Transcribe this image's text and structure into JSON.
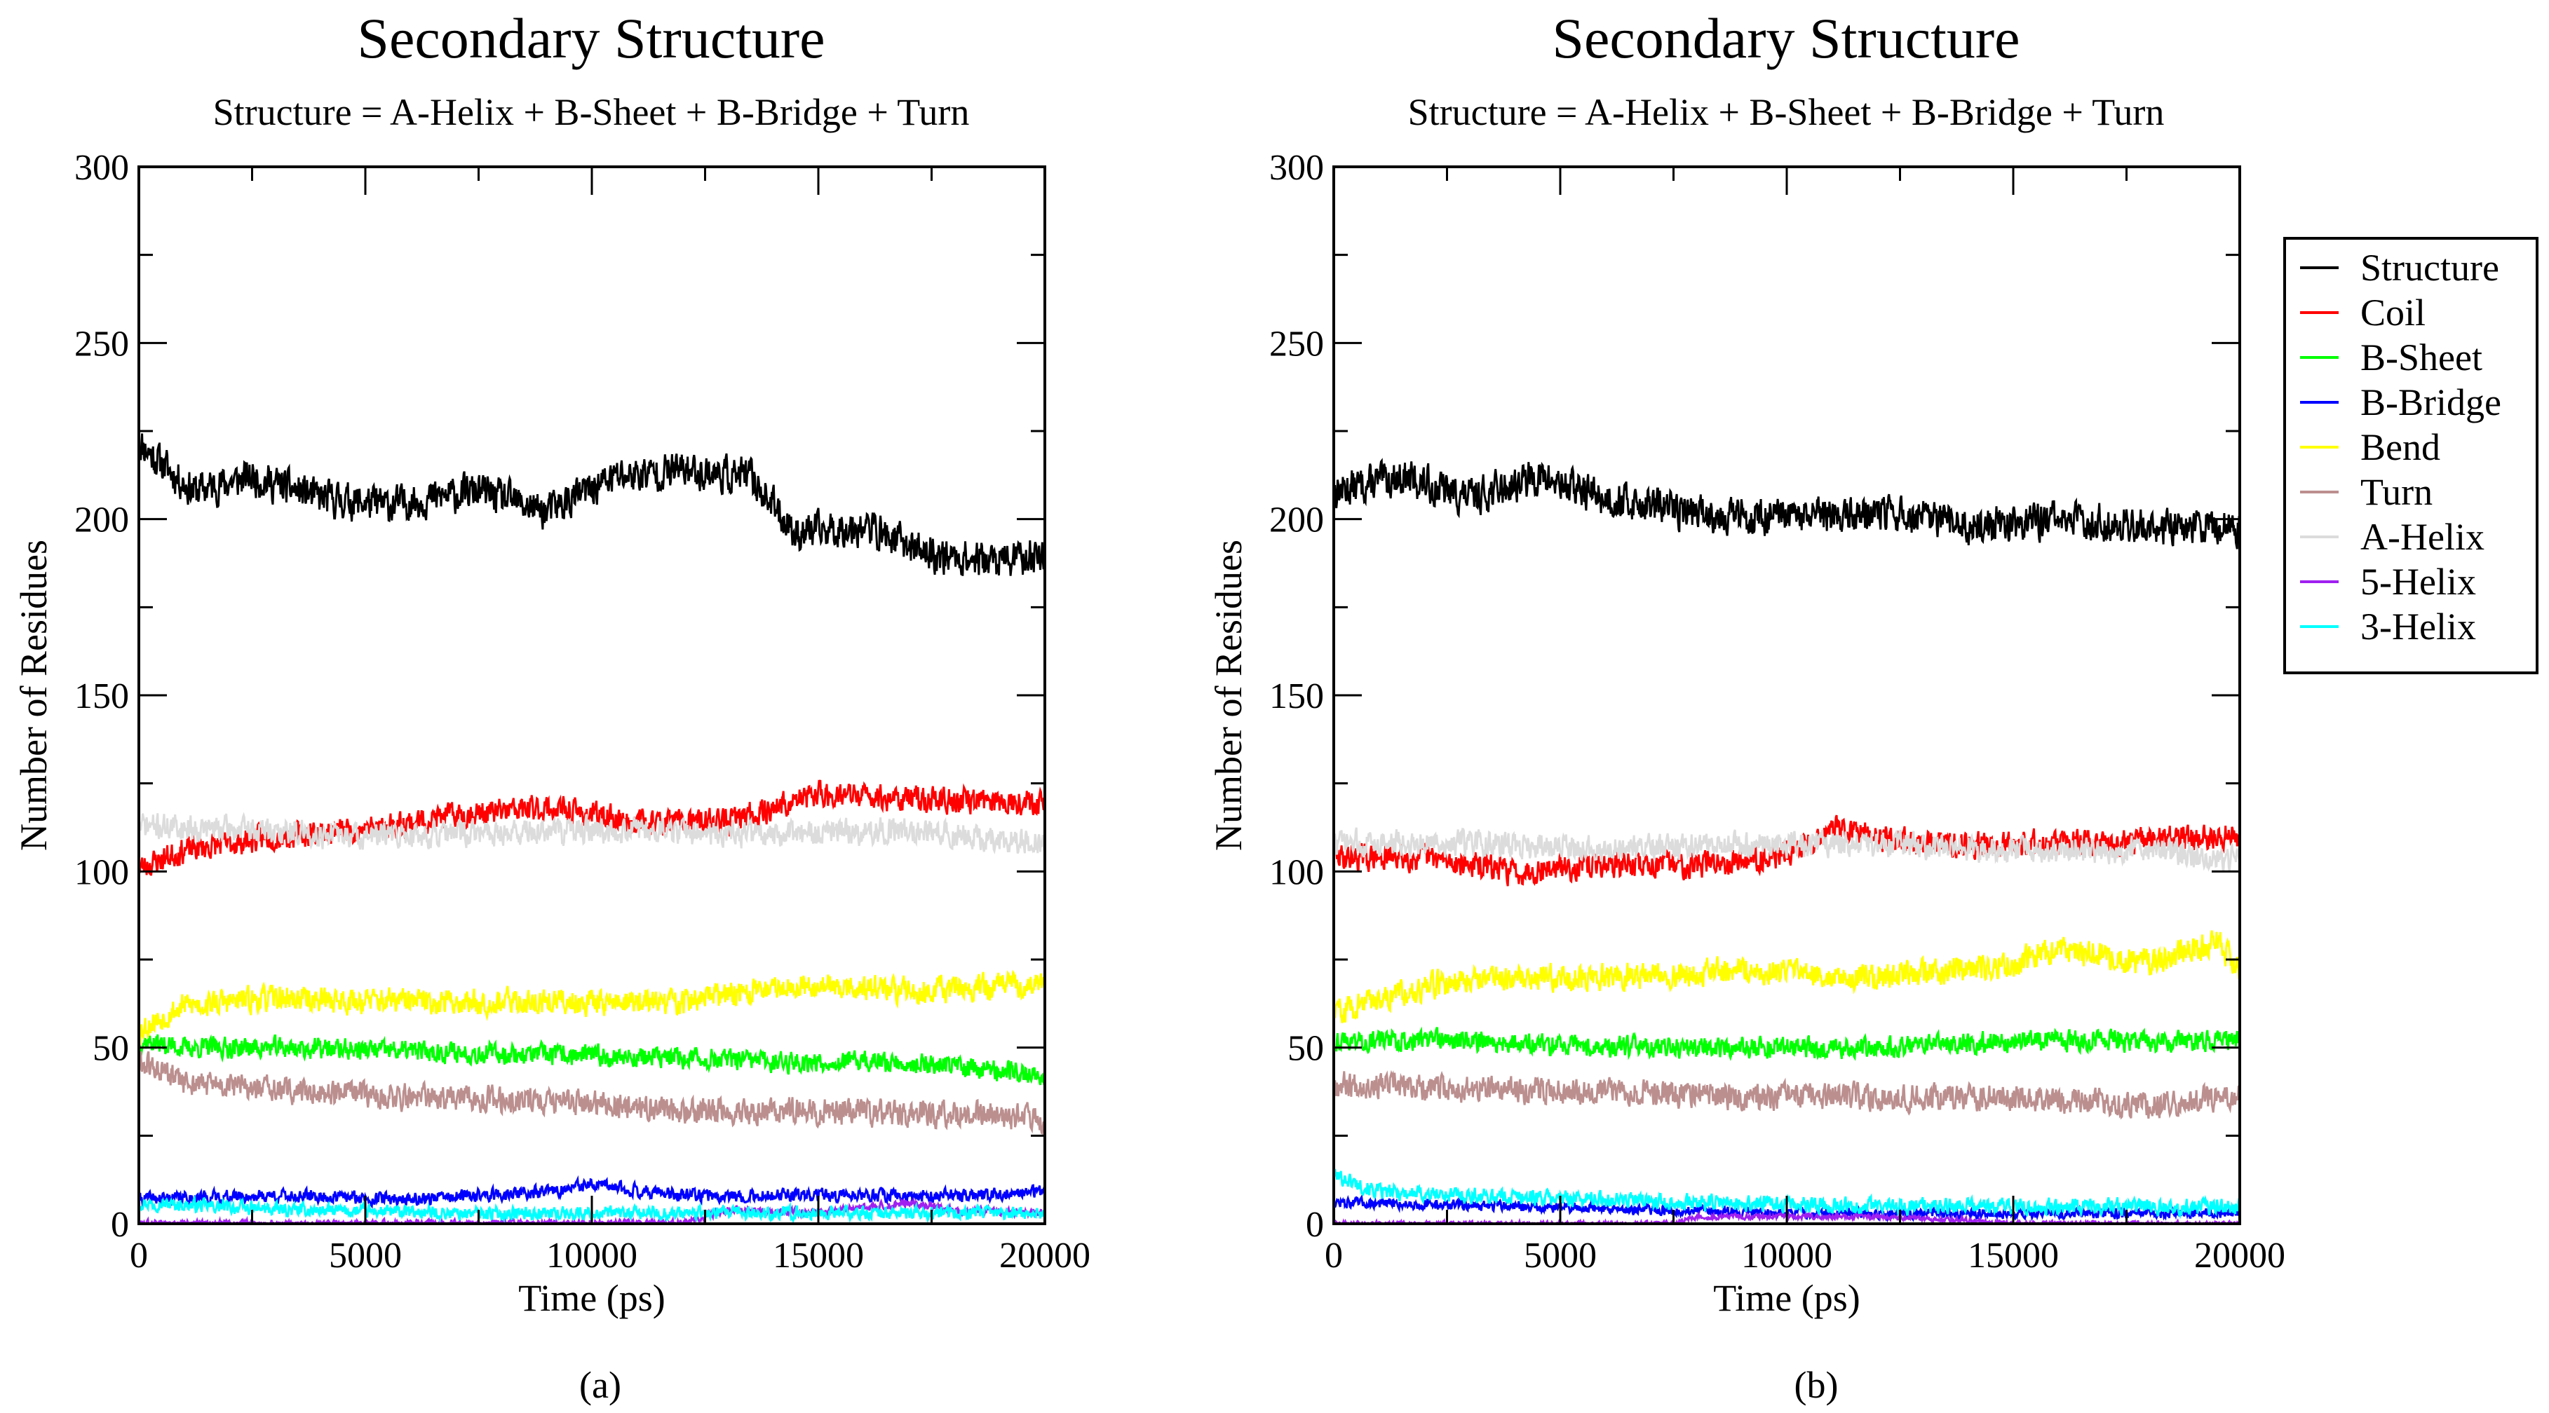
{
  "chart_data": [
    {
      "type": "line",
      "panel_label": "(a)",
      "title": "Secondary Structure",
      "subtitle": "Structure = A-Helix + B-Sheet + B-Bridge + Turn",
      "xlabel": "Time (ps)",
      "ylabel": "Number of Residues",
      "xlim": [
        0,
        20000
      ],
      "ylim": [
        0,
        300
      ],
      "x_ticks": [
        0,
        5000,
        10000,
        15000,
        20000
      ],
      "y_ticks": [
        0,
        50,
        100,
        150,
        200,
        250,
        300
      ],
      "series": [
        {
          "name": "Structure",
          "color": "#000000",
          "noise": 7,
          "seed": 11,
          "x": [
            0,
            300,
            1200,
            2500,
            4000,
            5500,
            7500,
            9000,
            10500,
            12000,
            13500,
            14500,
            16000,
            17500,
            19000,
            20000
          ],
          "y": [
            222,
            218,
            208,
            212,
            206,
            204,
            208,
            202,
            212,
            214,
            212,
            196,
            198,
            190,
            188,
            190
          ]
        },
        {
          "name": "Coil",
          "color": "#ff0000",
          "noise": 5,
          "seed": 23,
          "x": [
            0,
            1000,
            3000,
            5000,
            7000,
            9000,
            11000,
            13000,
            14000,
            15000,
            16500,
            18000,
            20000
          ],
          "y": [
            101,
            106,
            110,
            112,
            116,
            118,
            114,
            114,
            118,
            122,
            121,
            120,
            120
          ]
        },
        {
          "name": "B-Sheet",
          "color": "#00ff00",
          "noise": 4,
          "seed": 37,
          "x": [
            0,
            1000,
            3000,
            6000,
            9000,
            12000,
            14000,
            16000,
            18000,
            20000
          ],
          "y": [
            52,
            50,
            50,
            49,
            48,
            47,
            46,
            46,
            45,
            42
          ]
        },
        {
          "name": "B-Bridge",
          "color": "#0000ff",
          "noise": 2.5,
          "seed": 41,
          "x": [
            0,
            3000,
            6000,
            9000,
            10000,
            12000,
            15000,
            18000,
            20000
          ],
          "y": [
            7,
            8,
            7,
            9,
            11,
            8,
            8,
            8,
            9
          ]
        },
        {
          "name": "Bend",
          "color": "#ffff00",
          "noise": 5,
          "seed": 53,
          "x": [
            0,
            1000,
            3000,
            6000,
            9000,
            12000,
            14500,
            17000,
            20000
          ],
          "y": [
            55,
            62,
            64,
            63,
            63,
            63,
            68,
            66,
            68
          ]
        },
        {
          "name": "Turn",
          "color": "#bc8f8f",
          "noise": 5,
          "seed": 61,
          "x": [
            0,
            1000,
            3000,
            6000,
            9000,
            12000,
            15000,
            18000,
            20000
          ],
          "y": [
            46,
            40,
            38,
            36,
            35,
            32,
            32,
            31,
            30
          ]
        },
        {
          "name": "A-Helix",
          "color": "#dcdcdc",
          "noise": 5,
          "seed": 71,
          "x": [
            0,
            2000,
            5000,
            8000,
            11000,
            14000,
            17000,
            20000
          ],
          "y": [
            113,
            112,
            110,
            111,
            112,
            110,
            112,
            108
          ]
        },
        {
          "name": "5-Helix",
          "color": "#a020f0",
          "noise": 1.5,
          "seed": 83,
          "x": [
            0,
            12000,
            13000,
            15000,
            17000,
            18000,
            20000
          ],
          "y": [
            0,
            0,
            4,
            3,
            6,
            4,
            3
          ]
        },
        {
          "name": "3-Helix",
          "color": "#00ffff",
          "noise": 2.5,
          "seed": 97,
          "x": [
            0,
            3000,
            7000,
            11000,
            15000,
            20000
          ],
          "y": [
            6,
            4,
            3,
            3,
            3,
            3
          ]
        }
      ]
    },
    {
      "type": "line",
      "panel_label": "(b)",
      "title": "Secondary Structure",
      "subtitle": "Structure = A-Helix + B-Sheet + B-Bridge + Turn",
      "xlabel": "Time (ps)",
      "ylabel": "Number of Residues",
      "xlim": [
        0,
        20000
      ],
      "ylim": [
        0,
        300
      ],
      "x_ticks": [
        0,
        5000,
        10000,
        15000,
        20000
      ],
      "y_ticks": [
        0,
        50,
        100,
        150,
        200,
        250,
        300
      ],
      "legend": {
        "placement": "outside-right",
        "entries": [
          "Structure",
          "Coil",
          "B-Sheet",
          "B-Bridge",
          "Bend",
          "Turn",
          "A-Helix",
          "5-Helix",
          "3-Helix"
        ]
      },
      "series": [
        {
          "name": "Structure",
          "color": "#000000",
          "noise": 7,
          "seed": 13,
          "x": [
            0,
            1500,
            3000,
            4500,
            6000,
            8000,
            10000,
            12000,
            14000,
            16000,
            18000,
            20000
          ],
          "y": [
            208,
            212,
            206,
            212,
            206,
            202,
            200,
            202,
            198,
            200,
            198,
            198
          ]
        },
        {
          "name": "Coil",
          "color": "#ff0000",
          "noise": 5,
          "seed": 29,
          "x": [
            0,
            2000,
            4000,
            6000,
            8000,
            10000,
            11000,
            13000,
            15000,
            17000,
            20000
          ],
          "y": [
            104,
            104,
            100,
            102,
            102,
            105,
            112,
            108,
            108,
            108,
            110
          ]
        },
        {
          "name": "B-Sheet",
          "color": "#00ff00",
          "noise": 4,
          "seed": 43,
          "x": [
            0,
            3000,
            6000,
            9000,
            12000,
            15000,
            18000,
            20000
          ],
          "y": [
            52,
            52,
            50,
            50,
            50,
            52,
            52,
            52
          ]
        },
        {
          "name": "B-Bridge",
          "color": "#0000ff",
          "noise": 2,
          "seed": 47,
          "x": [
            0,
            4000,
            7000,
            10000,
            14000,
            20000
          ],
          "y": [
            6,
            5,
            4,
            3,
            3,
            3
          ]
        },
        {
          "name": "Bend",
          "color": "#ffff00",
          "noise": 5,
          "seed": 59,
          "x": [
            0,
            1000,
            3000,
            6000,
            9000,
            12000,
            15000,
            16000,
            18000,
            19500,
            20000
          ],
          "y": [
            60,
            64,
            70,
            70,
            72,
            70,
            74,
            78,
            74,
            80,
            72
          ]
        },
        {
          "name": "Turn",
          "color": "#bc8f8f",
          "noise": 5,
          "seed": 67,
          "x": [
            0,
            3000,
            6000,
            9000,
            12000,
            15000,
            18000,
            20000
          ],
          "y": [
            40,
            38,
            38,
            36,
            36,
            36,
            34,
            36
          ]
        },
        {
          "name": "A-Helix",
          "color": "#dcdcdc",
          "noise": 5,
          "seed": 73,
          "x": [
            0,
            3000,
            6000,
            9000,
            12000,
            15000,
            18000,
            20000
          ],
          "y": [
            108,
            108,
            106,
            108,
            108,
            106,
            106,
            104
          ]
        },
        {
          "name": "5-Helix",
          "color": "#a020f0",
          "noise": 1,
          "seed": 89,
          "x": [
            0,
            7500,
            8000,
            10000,
            12000,
            14000,
            15000,
            20000
          ],
          "y": [
            0,
            0,
            2,
            2,
            2,
            1,
            0,
            0
          ]
        },
        {
          "name": "3-Helix",
          "color": "#00ffff",
          "noise": 3,
          "seed": 101,
          "x": [
            0,
            1000,
            3000,
            6000,
            8000,
            12000,
            16000,
            20000
          ],
          "y": [
            14,
            9,
            8,
            7,
            6,
            5,
            5,
            5
          ]
        }
      ]
    }
  ]
}
